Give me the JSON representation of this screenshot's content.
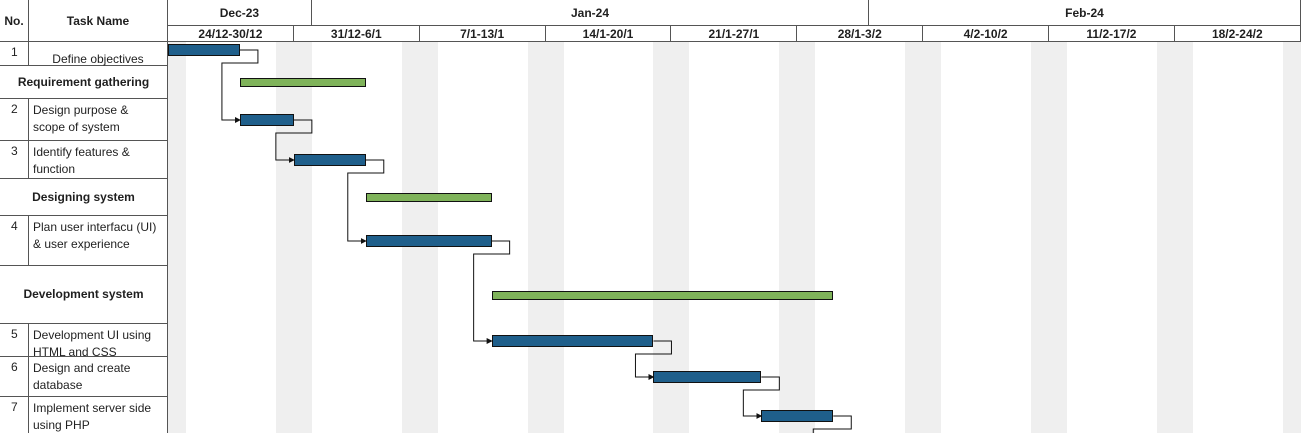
{
  "header": {
    "no_label": "No.",
    "task_label": "Task Name"
  },
  "timeline": {
    "months": [
      "Dec-23",
      "Jan-24",
      "Feb-24"
    ],
    "weeks": [
      "24/12-30/12",
      "31/12-6/1",
      "7/1-13/1",
      "14/1-20/1",
      "21/1-27/1",
      "28/1-3/2",
      "4/2-10/2",
      "11/2-17/2",
      "18/2-24/2"
    ]
  },
  "colors": {
    "task_bar": "#1f5f8b",
    "group_bar": "#7fb35a",
    "stripe": "#efefef",
    "grid": "#555555"
  },
  "chart_data": {
    "type": "gantt",
    "start_date": "2023-12-24",
    "rows": [
      {
        "no": "1",
        "name": "Define objectives",
        "kind": "task",
        "start": "2023-12-24",
        "end": "2023-12-27"
      },
      {
        "no": "",
        "name": "Requirement gathering",
        "kind": "group",
        "start": "2023-12-28",
        "end": "2024-01-03"
      },
      {
        "no": "2",
        "name": "Design purpose & scope of system",
        "kind": "task",
        "start": "2023-12-28",
        "end": "2023-12-30"
      },
      {
        "no": "3",
        "name": "Identify features & function",
        "kind": "task",
        "start": "2023-12-31",
        "end": "2024-01-03"
      },
      {
        "no": "",
        "name": "Designing system",
        "kind": "group",
        "start": "2024-01-04",
        "end": "2024-01-10"
      },
      {
        "no": "4",
        "name": "Plan user interfacu (UI) & user experience",
        "kind": "task",
        "start": "2024-01-04",
        "end": "2024-01-10"
      },
      {
        "no": "",
        "name": "Development system",
        "kind": "group",
        "start": "2024-01-11",
        "end": "2024-01-29"
      },
      {
        "no": "5",
        "name": "Development UI using HTML and CSS",
        "kind": "task",
        "start": "2024-01-11",
        "end": "2024-01-19"
      },
      {
        "no": "6",
        "name": "Design and create database",
        "kind": "task",
        "start": "2024-01-20",
        "end": "2024-01-25"
      },
      {
        "no": "7",
        "name": "Implement server side using PHP",
        "kind": "task",
        "start": "2024-01-26",
        "end": "2024-01-29"
      }
    ],
    "dependencies": [
      [
        0,
        2
      ],
      [
        2,
        3
      ],
      [
        3,
        5
      ],
      [
        5,
        7
      ],
      [
        7,
        8
      ],
      [
        8,
        9
      ]
    ]
  }
}
